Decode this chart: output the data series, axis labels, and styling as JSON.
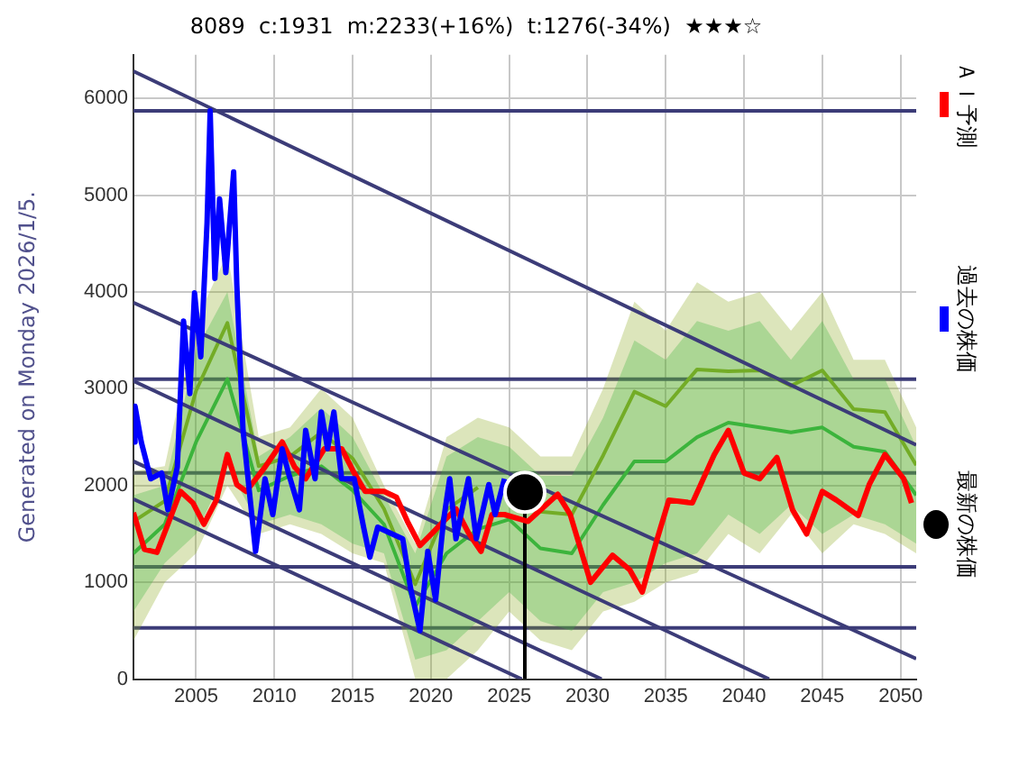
{
  "chart_data": {
    "type": "line",
    "title": "8089  c:1931  m:2233(+16%)  t:1276(-34%)  ★★★☆",
    "annotations": [
      "Generated on Monday 2026/1/5."
    ],
    "xlim": [
      2001,
      2051
    ],
    "xticks": [
      2005,
      2010,
      2015,
      2020,
      2025,
      2030,
      2035,
      2040,
      2045,
      2050
    ],
    "ylim": [
      0,
      6450
    ],
    "yticks": [
      0,
      1000,
      2000,
      3000,
      4000,
      5000,
      6000
    ],
    "grid": true,
    "legend": "right",
    "marker": "none",
    "line_style": "solid",
    "ref_lines": [
      {
        "axis": "y",
        "value": 5870,
        "color": "#3c3c78"
      },
      {
        "axis": "y",
        "value": 3100,
        "color": "#3c3c78"
      },
      {
        "axis": "y",
        "value": 2130,
        "color": "#3c3c78"
      },
      {
        "axis": "y",
        "value": 1160,
        "color": "#3c3c78"
      },
      {
        "axis": "y",
        "value": 530,
        "color": "#3c3c78"
      }
    ],
    "series": [
      {
        "type": "line",
        "color": "#8caa1e",
        "x": [
          2001,
          2003,
          2005,
          2007,
          2009,
          2011,
          2013,
          2015,
          2017,
          2019,
          2021,
          2023,
          2025,
          2027,
          2029,
          2031,
          2033,
          2035,
          2037,
          2039,
          2041,
          2043,
          2045,
          2047,
          2049,
          2051
        ],
        "values": [
          1630,
          1840,
          2980,
          3680,
          2200,
          2300,
          2550,
          2280,
          1760,
          980,
          1750,
          1980,
          null,
          1730,
          1700,
          2310,
          2970,
          2820,
          3200,
          3180,
          3190,
          3030,
          3190,
          2790,
          2760,
          2210
        ],
        "upper": [
          2150,
          2200,
          3700,
          4400,
          2500,
          2600,
          3000,
          2700,
          2000,
          1400,
          2500,
          2700,
          2600,
          2300,
          2300,
          3000,
          3900,
          3600,
          4100,
          3900,
          4000,
          3600,
          4000,
          3300,
          3300,
          2600
        ],
        "lower": [
          400,
          1000,
          1300,
          2000,
          1500,
          1600,
          1500,
          1300,
          1200,
          0,
          0,
          300,
          700,
          400,
          300,
          700,
          800,
          1000,
          1100,
          1500,
          1300,
          1700,
          1300,
          1600,
          1500,
          1300
        ]
      },
      {
        "type": "line",
        "color": "#3cb43c",
        "x": [
          2001,
          2003,
          2005,
          2007,
          2009,
          2011,
          2013,
          2015,
          2017,
          2019,
          2021,
          2023,
          2025,
          2027,
          2029,
          2031,
          2033,
          2035,
          2037,
          2039,
          2041,
          2043,
          2045,
          2047,
          2049,
          2051
        ],
        "values": [
          1300,
          1600,
          2450,
          3100,
          1950,
          2100,
          2200,
          1950,
          1600,
          750,
          1300,
          1550,
          1650,
          1350,
          1300,
          1800,
          2250,
          2250,
          2500,
          2650,
          2600,
          2550,
          2600,
          2400,
          2350,
          1900
        ],
        "upper": [
          1900,
          2000,
          3400,
          4000,
          2300,
          2500,
          2800,
          2500,
          1900,
          1300,
          2300,
          2500,
          2400,
          2100,
          2100,
          2700,
          3500,
          3300,
          3700,
          3600,
          3700,
          3300,
          3700,
          3100,
          3100,
          2400
        ],
        "lower": [
          700,
          1200,
          1500,
          2200,
          1600,
          1700,
          1600,
          1400,
          1300,
          200,
          300,
          600,
          900,
          600,
          500,
          900,
          1000,
          1200,
          1300,
          1700,
          1500,
          1800,
          1500,
          1700,
          1600,
          1400
        ]
      },
      {
        "type": "line",
        "color": "#3c3c78",
        "x": [
          2001,
          2051
        ],
        "values": [
          6280,
          2420
        ]
      },
      {
        "type": "line",
        "color": "#3c3c78",
        "x": [
          2001,
          2051
        ],
        "values": [
          3890,
          210
        ]
      },
      {
        "type": "line",
        "color": "#3c3c78",
        "x": [
          2001,
          2041.6
        ],
        "values": [
          3080,
          0
        ]
      },
      {
        "type": "line",
        "color": "#3c3c78",
        "x": [
          2001,
          2030.9
        ],
        "values": [
          2250,
          0
        ]
      },
      {
        "type": "line",
        "color": "#3c3c78",
        "x": [
          2001,
          2025.8
        ],
        "values": [
          1860,
          0
        ]
      },
      {
        "type": "line",
        "color": "#000000",
        "x": [
          2026,
          2026
        ],
        "values": [
          0,
          1931
        ]
      },
      {
        "name": "ＡＩ予測",
        "color": "#ff0000",
        "x": [
          2001.0,
          2001.7,
          2002.5,
          2003.2,
          2004.0,
          2004.8,
          2005.5,
          2006.3,
          2007.0,
          2007.6,
          2008.2,
          2009.4,
          2010.5,
          2011.3,
          2012.0,
          2013.2,
          2014.3,
          2015.1,
          2015.8,
          2017.0,
          2017.8,
          2018.5,
          2019.3,
          2020.1,
          2020.8,
          2021.6,
          2022.4,
          2023.2,
          2023.9,
          2024.7,
          2026.2,
          2028.1,
          2028.9,
          2030.2,
          2031.6,
          2032.7,
          2033.5,
          2034.4,
          2035.2,
          2036.7,
          2038.1,
          2039.0,
          2040.0,
          2041.0,
          2042.1,
          2043.1,
          2044.0,
          2045.0,
          2045.9,
          2047.3,
          2048.0,
          2049.0,
          2050.2,
          2050.7
        ],
        "values": [
          1720,
          1340,
          1310,
          1600,
          1940,
          1820,
          1600,
          1850,
          2320,
          2010,
          1940,
          2190,
          2450,
          2190,
          2070,
          2380,
          2380,
          2130,
          1940,
          1940,
          1880,
          1630,
          1380,
          1510,
          1630,
          1760,
          1510,
          1320,
          1700,
          1700,
          1630,
          1910,
          1700,
          1000,
          1280,
          1130,
          900,
          1420,
          1850,
          1820,
          2320,
          2570,
          2130,
          2070,
          2290,
          1750,
          1500,
          1940,
          1850,
          1690,
          2010,
          2320,
          2070,
          1820
        ]
      },
      {
        "name": "過去の株価",
        "color": "#0000ff",
        "x": [
          2001.0,
          2001.1,
          2001.5,
          2002.1,
          2002.8,
          2003.2,
          2003.8,
          2004.2,
          2004.6,
          2004.9,
          2005.3,
          2005.7,
          2005.9,
          2006.2,
          2006.5,
          2006.9,
          2007.4,
          2007.6,
          2008.0,
          2008.8,
          2009.4,
          2009.9,
          2010.5,
          2010.9,
          2011.6,
          2012.0,
          2012.6,
          2013.0,
          2013.4,
          2013.8,
          2014.3,
          2015.1,
          2015.7,
          2016.1,
          2016.6,
          2017.4,
          2018.2,
          2018.7,
          2019.3,
          2019.8,
          2020.3,
          2020.8,
          2021.2,
          2021.6,
          2022.4,
          2022.9,
          2023.7,
          2024.1,
          2024.7
        ],
        "values": [
          2450,
          2820,
          2450,
          2070,
          2130,
          1750,
          2190,
          3700,
          2950,
          3990,
          3330,
          4710,
          5870,
          4140,
          4960,
          4200,
          5240,
          4080,
          2570,
          1320,
          2070,
          1700,
          2380,
          2130,
          1750,
          2570,
          2070,
          2760,
          2380,
          2760,
          2070,
          2070,
          1570,
          1260,
          1570,
          1510,
          1450,
          940,
          500,
          1320,
          820,
          1630,
          2070,
          1450,
          2070,
          1450,
          2010,
          1700,
          2070
        ]
      },
      {
        "name": "最新の株価",
        "type": "scatter",
        "marker": "circle",
        "color": "#000000",
        "x": [
          2026
        ],
        "values": [
          1931
        ]
      }
    ]
  }
}
